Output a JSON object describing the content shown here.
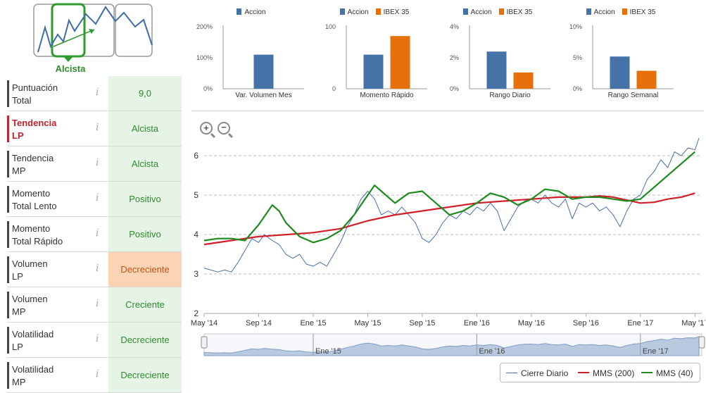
{
  "trend_widget": {
    "selected_label": "Alcista"
  },
  "scores": [
    {
      "label_lines": [
        "Puntuación",
        "Total"
      ],
      "value": "9,0",
      "tone": "green",
      "active": false
    },
    {
      "label_lines": [
        "Tendencia",
        "LP"
      ],
      "value": "Alcista",
      "tone": "green",
      "active": true
    },
    {
      "label_lines": [
        "Tendencia",
        "MP"
      ],
      "value": "Alcista",
      "tone": "green",
      "active": false
    },
    {
      "label_lines": [
        "Momento",
        "Total Lento"
      ],
      "value": "Positivo",
      "tone": "green",
      "active": false
    },
    {
      "label_lines": [
        "Momento",
        "Total Rápido"
      ],
      "value": "Positivo",
      "tone": "green",
      "active": false
    },
    {
      "label_lines": [
        "Volumen",
        "LP"
      ],
      "value": "Decreciente",
      "tone": "orange",
      "active": false
    },
    {
      "label_lines": [
        "Volumen",
        "MP"
      ],
      "value": "Creciente",
      "tone": "green",
      "active": false
    },
    {
      "label_lines": [
        "Volatilidad",
        "LP"
      ],
      "value": "Decreciente",
      "tone": "green",
      "active": false
    },
    {
      "label_lines": [
        "Volatilidad",
        "MP"
      ],
      "value": "Decreciente",
      "tone": "green",
      "active": false
    }
  ],
  "info_glyph": "i",
  "colors": {
    "accion": "#4572a7",
    "ibex": "#e8700a",
    "cierre": "#4a6ea9",
    "mms200": "#d0202a",
    "mms40": "#1f8a1f"
  },
  "zoom": {
    "in": "+",
    "out": "−"
  },
  "chart_data": [
    {
      "type": "bar",
      "title": "Var. Volumen Mes",
      "series": [
        {
          "name": "Accion",
          "values": [
            110
          ]
        }
      ],
      "yticks": [
        "0%",
        "100%",
        "200%"
      ],
      "ylim": [
        0,
        200
      ]
    },
    {
      "type": "bar",
      "title": "Momento Rápido",
      "series": [
        {
          "name": "Accion",
          "values": [
            55
          ]
        },
        {
          "name": "IBEX 35",
          "values": [
            85
          ]
        }
      ],
      "yticks": [
        "0",
        "100"
      ],
      "ylim": [
        0,
        100
      ]
    },
    {
      "type": "bar",
      "title": "Rango Diario",
      "series": [
        {
          "name": "Accion",
          "values": [
            2.4
          ]
        },
        {
          "name": "IBEX 35",
          "values": [
            1.05
          ]
        }
      ],
      "yticks": [
        "0%",
        "2%",
        "4%"
      ],
      "ylim": [
        0,
        4
      ]
    },
    {
      "type": "bar",
      "title": "Rango Semanal",
      "series": [
        {
          "name": "Accion",
          "values": [
            5.2
          ]
        },
        {
          "name": "IBEX 35",
          "values": [
            2.9
          ]
        }
      ],
      "yticks": [
        "0%",
        "5%",
        "10%"
      ],
      "ylim": [
        0,
        10
      ]
    },
    {
      "type": "line",
      "x_start": 0,
      "x_end": 36.5,
      "xticks": [
        {
          "m": 0,
          "label": "May '14"
        },
        {
          "m": 4,
          "label": "Sep '14"
        },
        {
          "m": 8,
          "label": "Ene '15"
        },
        {
          "m": 12,
          "label": "May '15"
        },
        {
          "m": 16,
          "label": "Sep '15"
        },
        {
          "m": 20,
          "label": "Ene '16"
        },
        {
          "m": 24,
          "label": "May '16"
        },
        {
          "m": 28,
          "label": "Sep '16"
        },
        {
          "m": 32,
          "label": "Ene '17"
        },
        {
          "m": 36,
          "label": "May '17"
        }
      ],
      "ylim": [
        2,
        6.7
      ],
      "yticks": [
        2,
        3,
        4,
        5,
        6
      ],
      "navigator_labels": [
        {
          "m": 8,
          "label": "Ene '15"
        },
        {
          "m": 20,
          "label": "Ene '16"
        },
        {
          "m": 32,
          "label": "Ene '17"
        }
      ],
      "series": [
        {
          "name": "Cierre Diario",
          "points": [
            [
              0,
              3.15
            ],
            [
              0.5,
              3.1
            ],
            [
              1,
              3.05
            ],
            [
              1.5,
              3.1
            ],
            [
              2,
              3.05
            ],
            [
              2.5,
              3.3
            ],
            [
              3,
              3.6
            ],
            [
              3.5,
              3.9
            ],
            [
              4,
              3.8
            ],
            [
              4.4,
              4.0
            ],
            [
              5,
              3.85
            ],
            [
              5.5,
              3.75
            ],
            [
              6,
              3.5
            ],
            [
              6.5,
              3.4
            ],
            [
              7,
              3.5
            ],
            [
              7.5,
              3.25
            ],
            [
              8,
              3.2
            ],
            [
              8.5,
              3.3
            ],
            [
              9,
              3.2
            ],
            [
              9.5,
              3.5
            ],
            [
              10,
              3.8
            ],
            [
              10.5,
              4.2
            ],
            [
              11,
              4.5
            ],
            [
              11.5,
              4.9
            ],
            [
              12,
              5.1
            ],
            [
              12.5,
              4.9
            ],
            [
              13,
              4.5
            ],
            [
              13.5,
              4.6
            ],
            [
              14,
              4.5
            ],
            [
              14.5,
              4.7
            ],
            [
              15,
              4.5
            ],
            [
              15.5,
              4.3
            ],
            [
              16,
              3.9
            ],
            [
              16.5,
              3.8
            ],
            [
              17,
              4.0
            ],
            [
              17.5,
              4.3
            ],
            [
              18,
              4.5
            ],
            [
              18.5,
              4.4
            ],
            [
              19,
              4.6
            ],
            [
              19.5,
              4.5
            ],
            [
              20,
              4.7
            ],
            [
              20.5,
              4.6
            ],
            [
              21,
              4.8
            ],
            [
              21.5,
              4.6
            ],
            [
              22,
              4.1
            ],
            [
              22.5,
              4.4
            ],
            [
              23,
              4.7
            ],
            [
              23.5,
              4.85
            ],
            [
              24,
              4.9
            ],
            [
              24.5,
              4.8
            ],
            [
              25,
              5.0
            ],
            [
              25.5,
              4.8
            ],
            [
              26,
              4.7
            ],
            [
              26.5,
              4.9
            ],
            [
              27,
              4.4
            ],
            [
              27.5,
              4.8
            ],
            [
              28,
              4.7
            ],
            [
              28.5,
              4.8
            ],
            [
              29,
              4.6
            ],
            [
              29.5,
              4.7
            ],
            [
              30,
              4.5
            ],
            [
              30.5,
              4.2
            ],
            [
              31,
              4.6
            ],
            [
              31.5,
              4.9
            ],
            [
              32,
              5.0
            ],
            [
              32.5,
              5.4
            ],
            [
              33,
              5.6
            ],
            [
              33.5,
              5.9
            ],
            [
              34,
              5.7
            ],
            [
              34.5,
              6.1
            ],
            [
              35,
              6.0
            ],
            [
              35.5,
              6.2
            ],
            [
              36,
              6.15
            ],
            [
              36.3,
              6.45
            ]
          ]
        },
        {
          "name": "MMS (200)",
          "points": [
            [
              0,
              3.75
            ],
            [
              2,
              3.85
            ],
            [
              4,
              3.95
            ],
            [
              6,
              4.0
            ],
            [
              8,
              4.05
            ],
            [
              10,
              4.15
            ],
            [
              12,
              4.35
            ],
            [
              14,
              4.5
            ],
            [
              16,
              4.6
            ],
            [
              18,
              4.7
            ],
            [
              20,
              4.8
            ],
            [
              22,
              4.85
            ],
            [
              24,
              4.9
            ],
            [
              26,
              4.95
            ],
            [
              28,
              4.95
            ],
            [
              29,
              4.98
            ],
            [
              30,
              4.95
            ],
            [
              32,
              4.8
            ],
            [
              33,
              4.82
            ],
            [
              34,
              4.9
            ],
            [
              35,
              4.95
            ],
            [
              36,
              5.05
            ]
          ]
        },
        {
          "name": "MMS (40)",
          "points": [
            [
              0,
              3.85
            ],
            [
              1,
              3.9
            ],
            [
              2,
              3.9
            ],
            [
              3,
              3.85
            ],
            [
              4,
              4.25
            ],
            [
              5,
              4.75
            ],
            [
              5.5,
              4.6
            ],
            [
              6,
              4.3
            ],
            [
              7,
              3.95
            ],
            [
              8,
              3.8
            ],
            [
              9,
              3.9
            ],
            [
              10,
              4.1
            ],
            [
              11,
              4.5
            ],
            [
              12,
              5.0
            ],
            [
              12.5,
              5.25
            ],
            [
              13,
              5.1
            ],
            [
              14,
              4.8
            ],
            [
              15,
              5.05
            ],
            [
              16,
              5.1
            ],
            [
              17,
              4.8
            ],
            [
              18,
              4.5
            ],
            [
              19,
              4.6
            ],
            [
              20,
              4.8
            ],
            [
              21,
              5.05
            ],
            [
              22,
              4.95
            ],
            [
              23,
              4.75
            ],
            [
              24,
              4.9
            ],
            [
              25,
              5.15
            ],
            [
              26,
              5.1
            ],
            [
              27,
              4.9
            ],
            [
              28,
              4.95
            ],
            [
              29,
              4.95
            ],
            [
              30,
              4.9
            ],
            [
              31,
              4.85
            ],
            [
              32,
              4.9
            ],
            [
              33,
              5.2
            ],
            [
              34,
              5.5
            ],
            [
              35,
              5.8
            ],
            [
              36,
              6.1
            ]
          ]
        }
      ]
    }
  ]
}
